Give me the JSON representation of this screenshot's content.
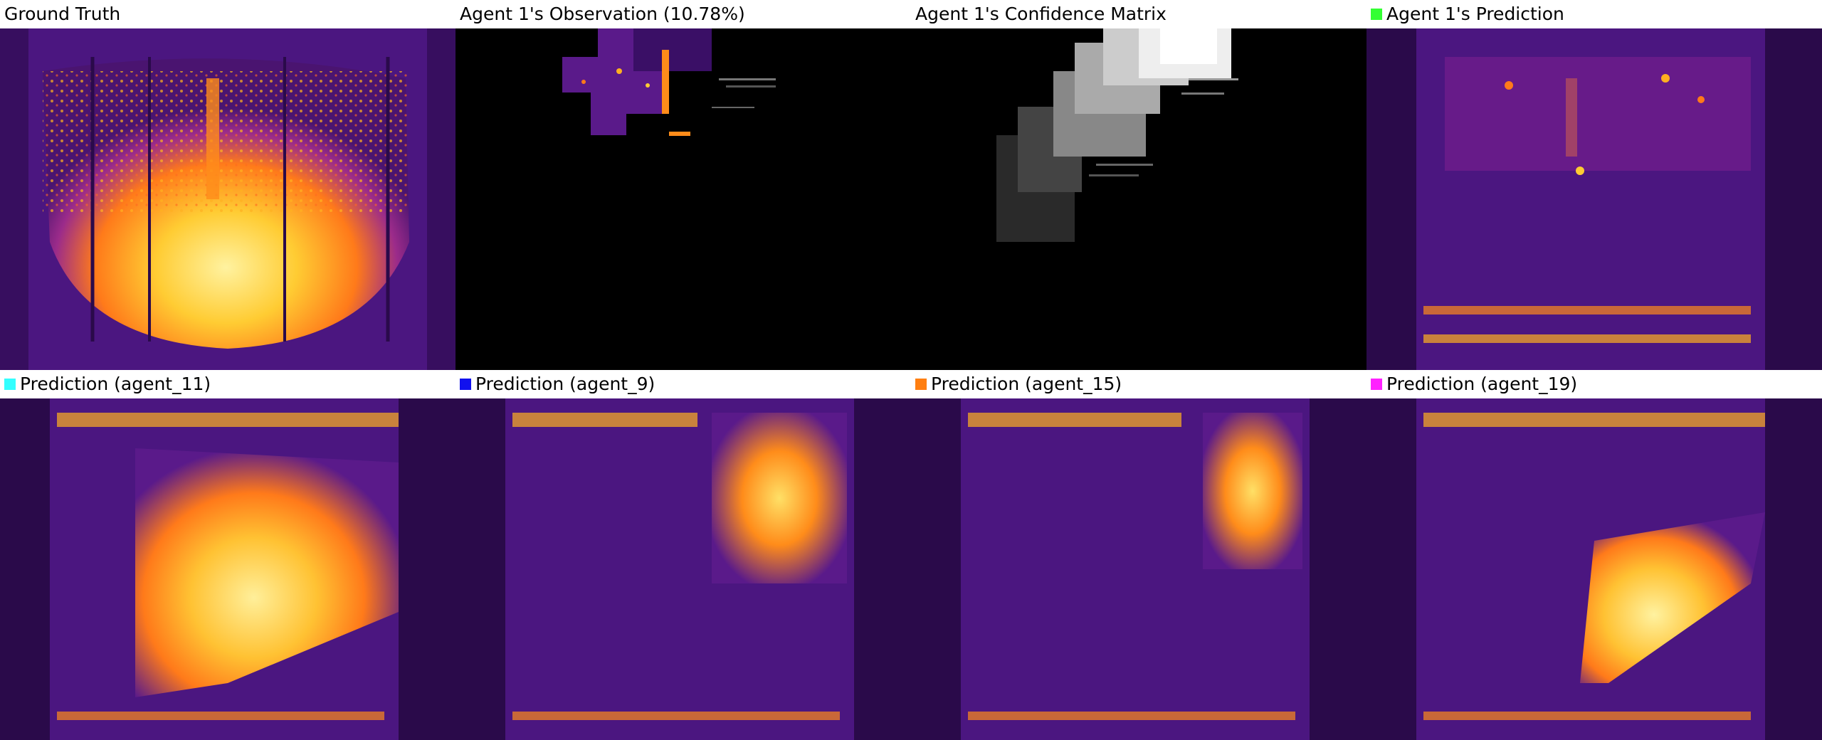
{
  "panels": [
    {
      "title": "Ground Truth",
      "kind": "ground_truth"
    },
    {
      "title": "Agent 1's Observation (10.78%)",
      "kind": "observation"
    },
    {
      "title": "Agent 1's Confidence Matrix",
      "kind": "confidence"
    },
    {
      "title": "Agent 1's Prediction",
      "kind": "prediction",
      "swatch": "#33ff33"
    },
    {
      "title": "Prediction (agent_11)",
      "kind": "prediction",
      "swatch": "#33ffff"
    },
    {
      "title": "Prediction (agent_9)",
      "kind": "prediction",
      "swatch": "#1111ee"
    },
    {
      "title": "Prediction (agent_15)",
      "kind": "prediction",
      "swatch": "#ff7f11"
    },
    {
      "title": "Prediction (agent_19)",
      "kind": "prediction",
      "swatch": "#ff22ff"
    }
  ],
  "colors": {
    "heat_dark": "#2a0a4a",
    "heat_mid": "#5a1a8a",
    "heat_hot": "#ff8c00",
    "heat_max": "#ffe066",
    "agent_green": "#33ff33",
    "agent_cyan": "#33ffff",
    "agent_blue": "#1111ee",
    "agent_orange": "#ff7f11",
    "agent_magenta": "#ff22ff"
  }
}
